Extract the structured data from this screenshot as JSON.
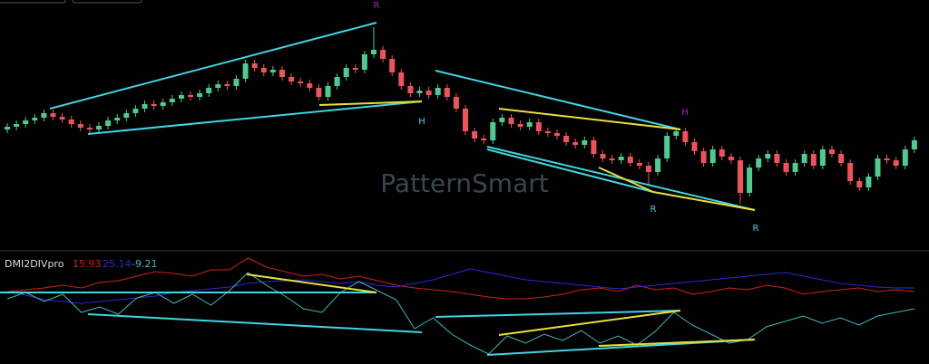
{
  "chart_data": [
    {
      "type": "candlestick",
      "watermark": "PatternSmart",
      "annotations": [
        "R",
        "H",
        "H",
        "R",
        "R"
      ],
      "up_color": "#4ecb8f",
      "down_color": "#f0525a",
      "ylim": [
        0,
        275
      ],
      "open": [
        132,
        135,
        138,
        142,
        145,
        150,
        146,
        143,
        138,
        134,
        132,
        136,
        142,
        145,
        150,
        155,
        160,
        158,
        162,
        166,
        170,
        168,
        172,
        178,
        182,
        180,
        188,
        205,
        200,
        195,
        198,
        190,
        185,
        183,
        178,
        168,
        180,
        190,
        200,
        198,
        215,
        220,
        210,
        195,
        180,
        172,
        175,
        170,
        178,
        168,
        155,
        130,
        122,
        120,
        140,
        145,
        138,
        135,
        140,
        130,
        128,
        125,
        118,
        115,
        120,
        105,
        100,
        98,
        102,
        95,
        92,
        85,
        100,
        125,
        130,
        118,
        108,
        95,
        110,
        102,
        98,
        62,
        90,
        100,
        105,
        95,
        85,
        95,
        105,
        92,
        110,
        105,
        95,
        75,
        68,
        80,
        100,
        98,
        92,
        110
      ],
      "high": [
        139,
        142,
        146,
        149,
        154,
        154,
        150,
        147,
        142,
        138,
        140,
        146,
        149,
        154,
        159,
        164,
        164,
        166,
        170,
        174,
        174,
        176,
        182,
        186,
        186,
        192,
        209,
        209,
        204,
        202,
        202,
        194,
        189,
        187,
        182,
        184,
        194,
        204,
        204,
        219,
        245,
        224,
        214,
        199,
        184,
        179,
        179,
        182,
        182,
        172,
        159,
        134,
        126,
        144,
        149,
        149,
        142,
        144,
        144,
        134,
        132,
        129,
        122,
        124,
        124,
        109,
        104,
        106,
        106,
        99,
        96,
        104,
        129,
        134,
        134,
        122,
        112,
        114,
        114,
        106,
        102,
        94,
        104,
        109,
        109,
        99,
        99,
        109,
        109,
        114,
        114,
        109,
        99,
        79,
        84,
        104,
        104,
        102,
        114,
        124
      ],
      "low": [
        128,
        131,
        134,
        138,
        141,
        142,
        139,
        134,
        130,
        128,
        128,
        132,
        138,
        141,
        146,
        151,
        154,
        154,
        158,
        162,
        164,
        164,
        168,
        174,
        176,
        176,
        184,
        196,
        191,
        191,
        186,
        181,
        179,
        174,
        164,
        164,
        176,
        186,
        194,
        194,
        211,
        206,
        191,
        176,
        168,
        168,
        166,
        166,
        164,
        151,
        126,
        118,
        116,
        116,
        136,
        134,
        131,
        131,
        126,
        124,
        121,
        114,
        111,
        111,
        101,
        96,
        94,
        94,
        91,
        88,
        70,
        81,
        96,
        121,
        114,
        104,
        91,
        91,
        98,
        94,
        50,
        58,
        86,
        96,
        91,
        81,
        81,
        91,
        88,
        88,
        101,
        91,
        71,
        64,
        64,
        76,
        94,
        88,
        88,
        106
      ],
      "close": [
        135,
        138,
        142,
        145,
        150,
        146,
        143,
        138,
        134,
        132,
        136,
        142,
        145,
        150,
        155,
        160,
        158,
        162,
        166,
        170,
        168,
        172,
        178,
        182,
        180,
        188,
        205,
        200,
        195,
        198,
        190,
        185,
        183,
        178,
        168,
        180,
        190,
        200,
        198,
        215,
        220,
        210,
        195,
        180,
        172,
        175,
        170,
        178,
        168,
        155,
        130,
        122,
        120,
        140,
        145,
        138,
        135,
        140,
        130,
        128,
        125,
        118,
        115,
        120,
        105,
        100,
        98,
        102,
        95,
        92,
        85,
        100,
        125,
        130,
        118,
        108,
        95,
        110,
        102,
        98,
        62,
        90,
        100,
        105,
        95,
        85,
        95,
        105,
        92,
        110,
        105,
        95,
        75,
        68,
        80,
        100,
        98,
        92,
        110,
        120
      ]
    },
    {
      "type": "line",
      "title": "DMI2DIVpro",
      "ylim": [
        -59,
        59
      ],
      "series": [
        {
          "color": "#d0211c",
          "legend_value": 15.93,
          "values": [
            19,
            21,
            23,
            26,
            23,
            29,
            31,
            36,
            41,
            39,
            36,
            43,
            43,
            56,
            46,
            41,
            36,
            38,
            33,
            36,
            31,
            26,
            23,
            21,
            19,
            16,
            13,
            11,
            11,
            13,
            16,
            21,
            23,
            19,
            26,
            21,
            23,
            16,
            19,
            23,
            21,
            26,
            23,
            16,
            19,
            21,
            23,
            19,
            21,
            19
          ]
        },
        {
          "color": "#2a2ad8",
          "legend_value": 25.14,
          "values": [
            19,
            15,
            10,
            8,
            6,
            8,
            10,
            12,
            14,
            18,
            20,
            22,
            24,
            28,
            30,
            31,
            32,
            30,
            28,
            30,
            26,
            24,
            28,
            32,
            38,
            44,
            40,
            36,
            32,
            30,
            28,
            26,
            24,
            22,
            24,
            26,
            28,
            30,
            32,
            34,
            36,
            38,
            40,
            36,
            32,
            28,
            26,
            24,
            23,
            23
          ]
        },
        {
          "color": "#3fb8b8",
          "legend_value": -9.21,
          "values": [
            11,
            18,
            8,
            16,
            -4,
            2,
            -6,
            12,
            18,
            6,
            16,
            4,
            20,
            40,
            26,
            14,
            0,
            -4,
            18,
            30,
            20,
            10,
            -22,
            -10,
            -28,
            -40,
            -50,
            -30,
            -38,
            -28,
            -35,
            -24,
            -38,
            -30,
            -40,
            -25,
            -4,
            -18,
            -28,
            -38,
            -34,
            -20,
            -14,
            -8,
            -16,
            -10,
            -18,
            -8,
            -4,
            0
          ]
        }
      ]
    }
  ]
}
